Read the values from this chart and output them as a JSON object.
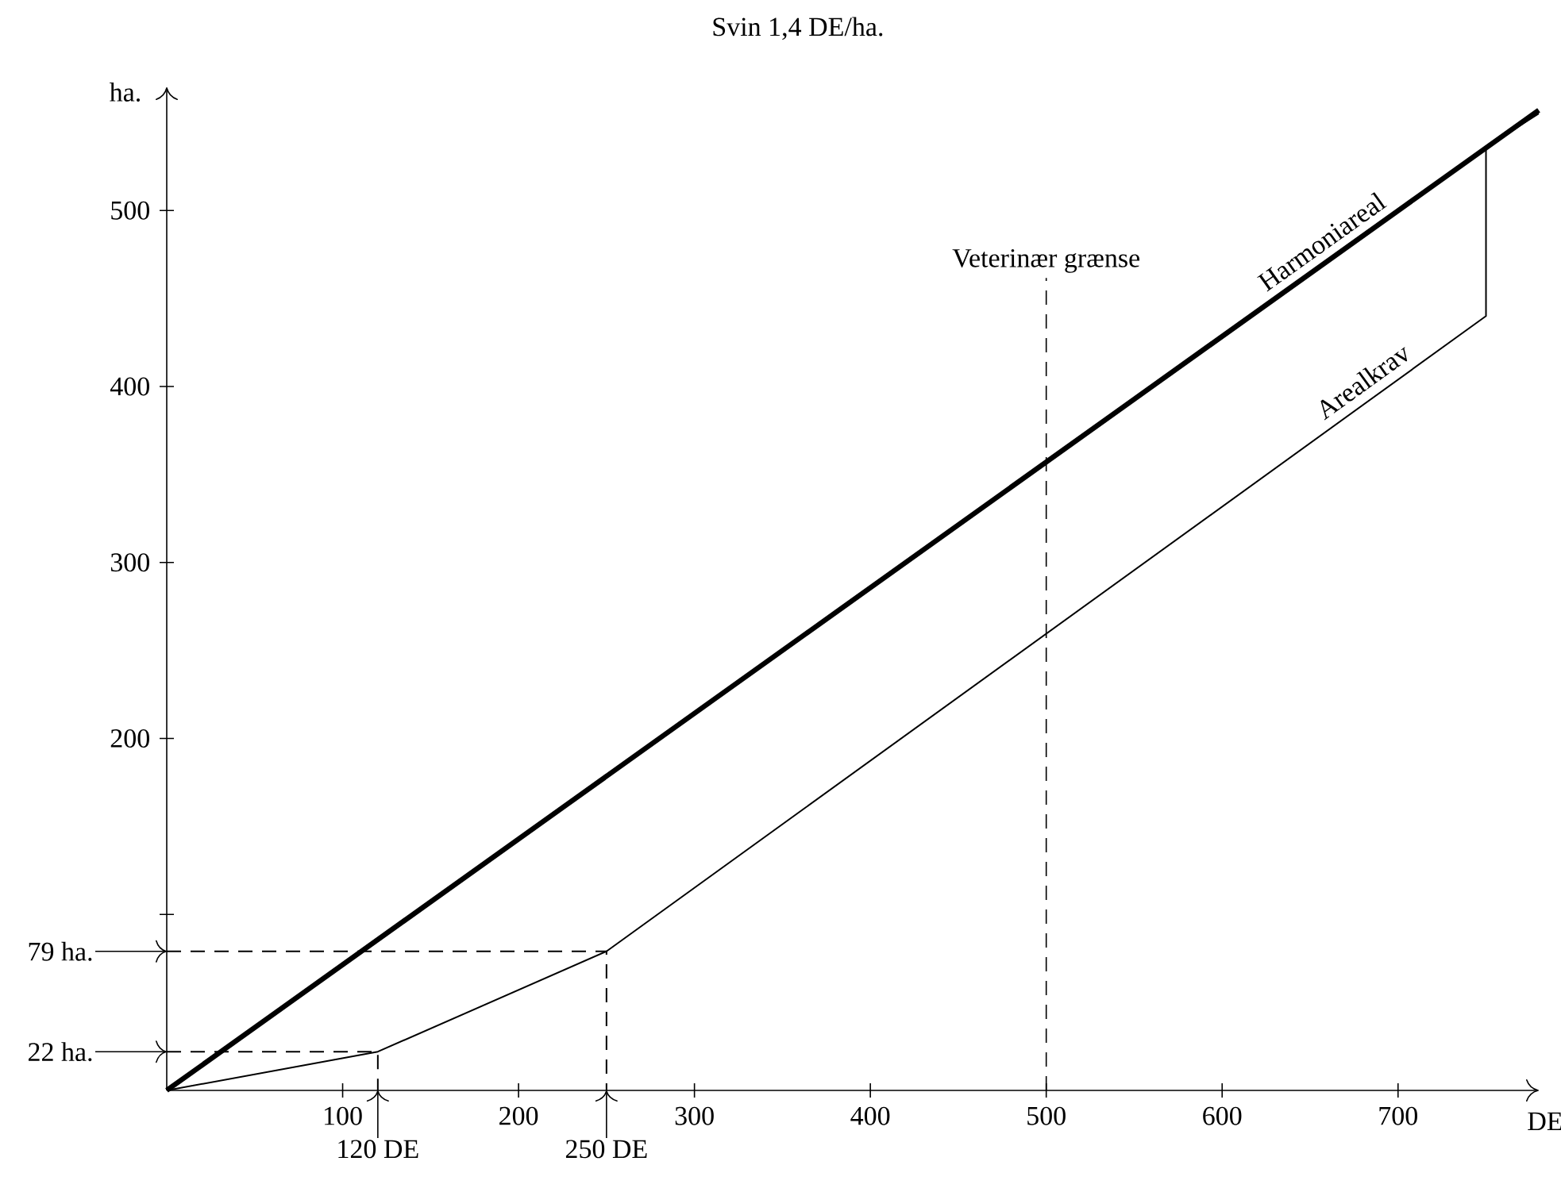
{
  "chart_data": {
    "type": "line",
    "title": "Svin 1,4 DE/ha.",
    "xlabel": "DE",
    "ylabel": "ha.",
    "xlim": [
      0,
      780
    ],
    "ylim": [
      0,
      570
    ],
    "xticks": [
      100,
      200,
      300,
      400,
      500,
      600,
      700
    ],
    "yticks": [
      {
        "value": 100,
        "label": null
      },
      200,
      300,
      400,
      500
    ],
    "grid": false,
    "legend": false,
    "marker": "none",
    "series": [
      {
        "name": "Harmoniareal",
        "color": "#000000",
        "x": [
          0,
          780
        ],
        "values": [
          0,
          557
        ]
      },
      {
        "name": "Arealkrav",
        "color": "#000000",
        "x": [
          0,
          120,
          250,
          750,
          750,
          780
        ],
        "values": [
          0,
          22,
          79,
          440,
          536,
          555
        ]
      },
      {
        "color": "#000000",
        "line_style": "dashed",
        "x": [
          0,
          120,
          120
        ],
        "values": [
          22,
          22,
          0
        ]
      },
      {
        "color": "#000000",
        "line_style": "dashed",
        "x": [
          0,
          250,
          250
        ],
        "values": [
          79,
          79,
          0
        ]
      }
    ],
    "ref_lines": [
      {
        "axis": "x",
        "value": 500,
        "label": "Veterinær grænse",
        "line_style": "dashed"
      }
    ],
    "annotations": [
      {
        "text": "22 ha.",
        "x": 0,
        "y": 22
      },
      {
        "text": "79 ha.",
        "x": 0,
        "y": 79
      },
      {
        "text": "120 DE",
        "x": 120,
        "y": 0
      },
      {
        "text": "250 DE",
        "x": 250,
        "y": 0
      }
    ]
  }
}
